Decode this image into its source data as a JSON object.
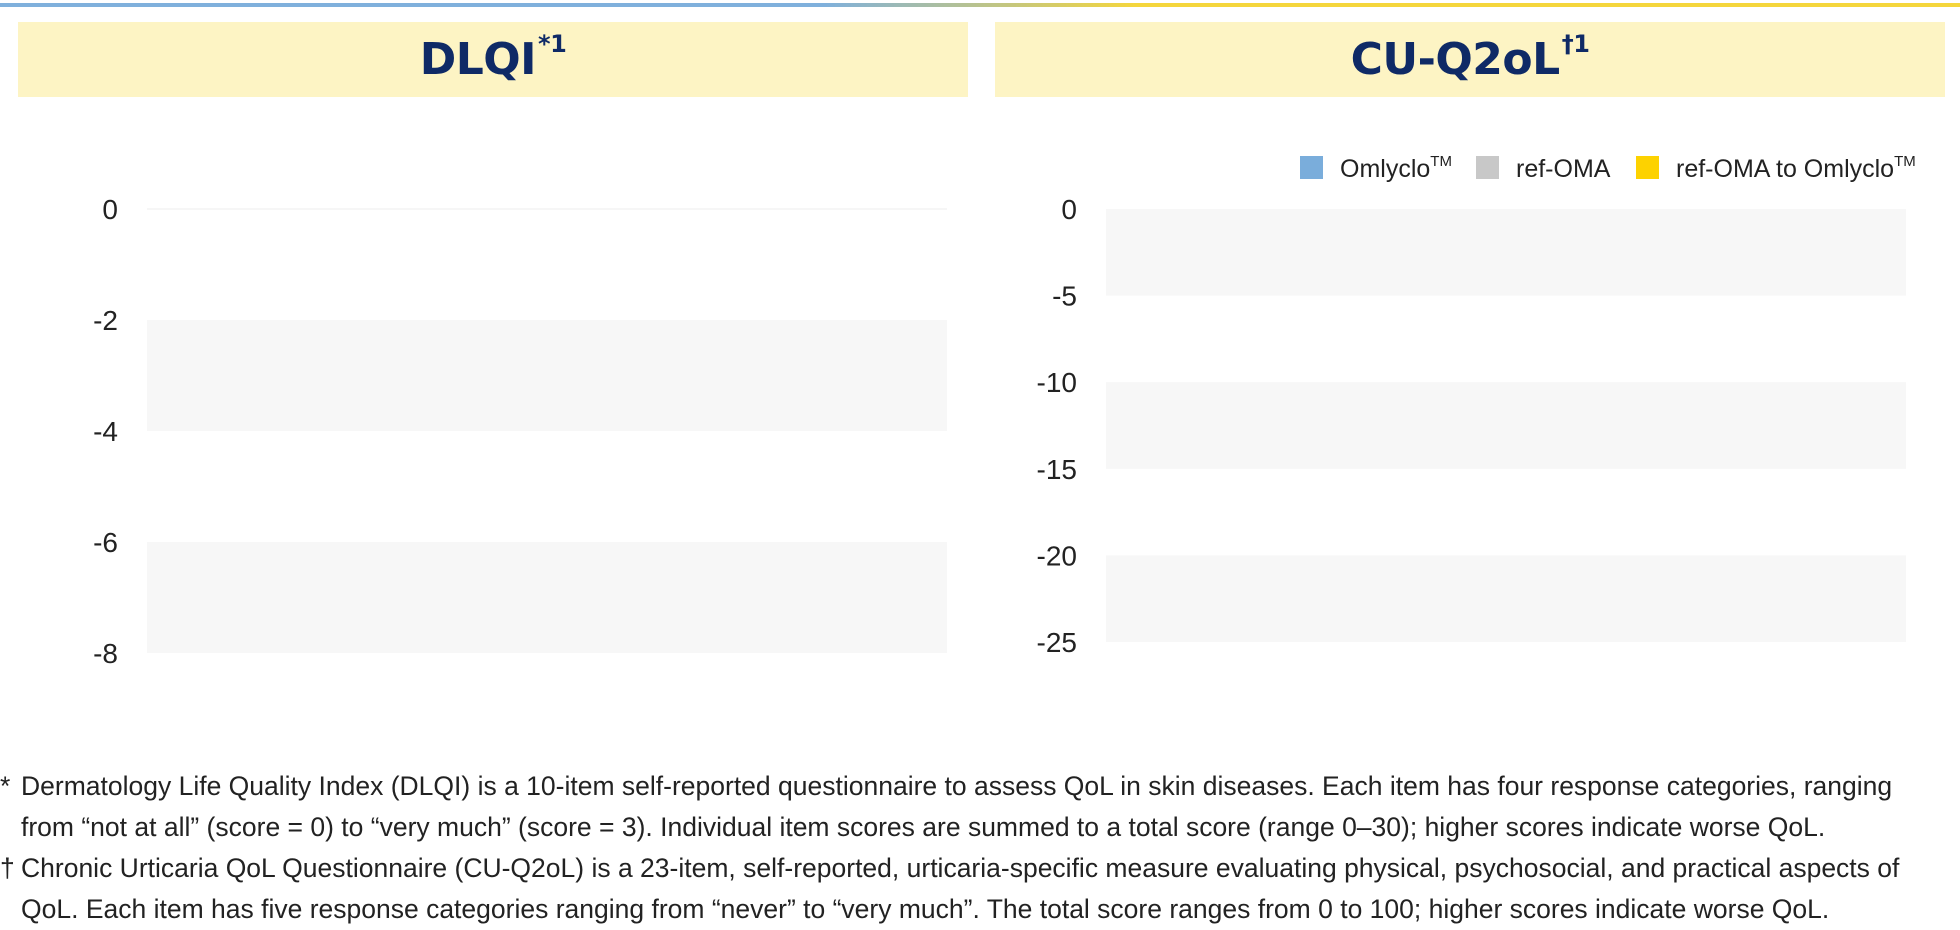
{
  "colors": {
    "omlyclo": "#7aaddb",
    "ref_oma": "#c8c8c8",
    "switch": "#fdd200",
    "title": "#0f2a66",
    "header_bg": "#fdf4c4",
    "band": "#f7f7f7"
  },
  "panels": [
    {
      "title": "DLQI",
      "sup": "*1"
    },
    {
      "title": "CU-Q2oL",
      "sup": "†1"
    }
  ],
  "legend": [
    {
      "label": "Omlyclo",
      "tm": "TM",
      "color": "#7aaddb"
    },
    {
      "label": "ref-OMA",
      "tm": "",
      "color": "#c8c8c8"
    },
    {
      "label": "ref-OMA to Omlyclo",
      "tm": "TM",
      "color": "#fdd200"
    }
  ],
  "chart_data": [
    {
      "type": "bar",
      "title": "DLQI*1",
      "xlabel": "",
      "ylabel": "",
      "ylim": [
        -8,
        0
      ],
      "yticks": [
        "0",
        "-2",
        "-4",
        "-6",
        "-8"
      ],
      "categories": [],
      "series": [],
      "grid": true
    },
    {
      "type": "bar",
      "title": "CU-Q2oL†1",
      "xlabel": "",
      "ylabel": "",
      "ylim": [
        -25,
        0
      ],
      "yticks": [
        "0",
        "-5",
        "-10",
        "-15",
        "-20",
        "-25"
      ],
      "categories": [],
      "series": [],
      "legend_position": "top-right",
      "grid": true
    }
  ],
  "footnotes": [
    {
      "mark": "*",
      "line1": "Dermatology Life Quality Index (DLQI) is a 10-item self-reported questionnaire to assess QoL in skin diseases. Each item has four response categories, ranging",
      "line2": "from “not at all” (score = 0) to “very much” (score = 3). Individual item scores are summed to a total score (range 0–30); higher scores indicate worse QoL."
    },
    {
      "mark": "†",
      "line1": "Chronic Urticaria QoL Questionnaire (CU-Q2oL) is a 23-item, self-reported, urticaria-specific measure evaluating physical, psychosocial, and practical aspects of",
      "line2": "QoL. Each item has five response categories ranging from “never” to “very much”. The total score ranges from 0 to 100; higher scores indicate worse QoL."
    }
  ]
}
